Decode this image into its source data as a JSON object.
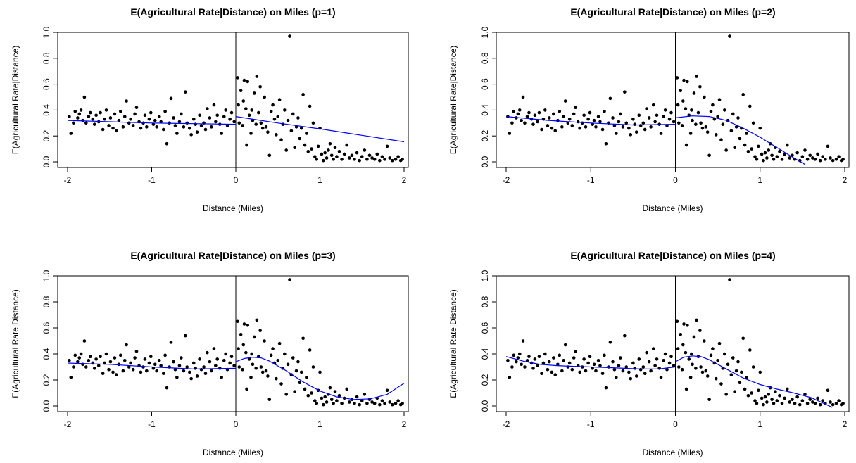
{
  "colors": {
    "points": "#000000",
    "fit_line": "#0000ff",
    "axis": "#000000",
    "cutoff": "#000000"
  },
  "chart_data": [
    {
      "type": "scatter",
      "title": "E(Agricultural Rate|Distance) on Miles (p=1)",
      "xlabel": "Distance (Miles)",
      "ylabel": "E(Agricultural Rate|Distance)",
      "xticks": [
        "-2",
        "-1",
        "0",
        "1",
        "2"
      ],
      "yticks": [
        "0.0",
        "0.2",
        "0.4",
        "0.6",
        "0.8",
        "1.0"
      ],
      "xlim": [
        -2,
        2
      ],
      "ylim": [
        0,
        1
      ],
      "cutoff_x": 0,
      "polynomial_order": 1,
      "fit_left": {
        "x": [
          -2,
          -1.5,
          -1,
          -0.5,
          0
        ],
        "y": [
          0.32,
          0.31,
          0.3,
          0.295,
          0.29
        ]
      },
      "fit_right": {
        "x": [
          0,
          0.5,
          1,
          1.5,
          2
        ],
        "y": [
          0.35,
          0.3,
          0.255,
          0.205,
          0.155
        ]
      }
    },
    {
      "type": "scatter",
      "title": "E(Agricultural Rate|Distance) on Miles (p=2)",
      "xlabel": "Distance (Miles)",
      "ylabel": "E(Agricultural Rate|Distance)",
      "xticks": [
        "-2",
        "-1",
        "0",
        "1",
        "2"
      ],
      "yticks": [
        "0.0",
        "0.2",
        "0.4",
        "0.6",
        "0.8",
        "1.0"
      ],
      "xlim": [
        -2,
        2
      ],
      "ylim": [
        0,
        1
      ],
      "cutoff_x": 0,
      "polynomial_order": 2,
      "fit_left": {
        "x": [
          -2,
          -1.5,
          -1,
          -0.5,
          0
        ],
        "y": [
          0.35,
          0.32,
          0.3,
          0.285,
          0.29
        ]
      },
      "fit_right": {
        "x": [
          0,
          0.2,
          0.4,
          0.6,
          0.8,
          1.0,
          1.2,
          1.4,
          1.53
        ],
        "y": [
          0.34,
          0.355,
          0.35,
          0.32,
          0.26,
          0.19,
          0.11,
          0.03,
          -0.02
        ]
      }
    },
    {
      "type": "scatter",
      "title": "E(Agricultural Rate|Distance) on Miles (p=3)",
      "xlabel": "Distance (Miles)",
      "ylabel": "E(Agricultural Rate|Distance)",
      "xticks": [
        "-2",
        "-1",
        "0",
        "1",
        "2"
      ],
      "yticks": [
        "0.0",
        "0.2",
        "0.4",
        "0.6",
        "0.8",
        "1.0"
      ],
      "xlim": [
        -2,
        2
      ],
      "ylim": [
        0,
        1
      ],
      "cutoff_x": 0,
      "polynomial_order": 3,
      "fit_left": {
        "x": [
          -2,
          -1.5,
          -1,
          -0.5,
          0
        ],
        "y": [
          0.33,
          0.32,
          0.3,
          0.285,
          0.29
        ]
      },
      "fit_right": {
        "x": [
          0,
          0.1,
          0.2,
          0.3,
          0.4,
          0.6,
          0.8,
          1.0,
          1.2,
          1.4,
          1.6,
          1.8,
          2.0
        ],
        "y": [
          0.34,
          0.365,
          0.375,
          0.37,
          0.345,
          0.27,
          0.185,
          0.115,
          0.07,
          0.05,
          0.055,
          0.09,
          0.175
        ]
      }
    },
    {
      "type": "scatter",
      "title": "E(Agricultural Rate|Distance) on Miles (p=4)",
      "xlabel": "Distance (Miles)",
      "ylabel": "E(Agricultural Rate|Distance)",
      "xticks": [
        "-2",
        "-1",
        "0",
        "1",
        "2"
      ],
      "yticks": [
        "0.0",
        "0.2",
        "0.4",
        "0.6",
        "0.8",
        "1.0"
      ],
      "xlim": [
        -2,
        2
      ],
      "ylim": [
        0,
        1
      ],
      "cutoff_x": 0,
      "polynomial_order": 4,
      "fit_left": {
        "x": [
          -2,
          -1.8,
          -1.6,
          -1.4,
          -1.2,
          -1.0,
          -0.8,
          -0.6,
          -0.4,
          -0.2,
          0
        ],
        "y": [
          0.38,
          0.345,
          0.32,
          0.31,
          0.305,
          0.3,
          0.295,
          0.29,
          0.285,
          0.285,
          0.3
        ]
      },
      "fit_right": {
        "x": [
          0,
          0.1,
          0.2,
          0.3,
          0.4,
          0.6,
          0.8,
          1.0,
          1.2,
          1.4,
          1.6,
          1.8,
          1.85
        ],
        "y": [
          0.34,
          0.375,
          0.385,
          0.38,
          0.355,
          0.285,
          0.215,
          0.165,
          0.13,
          0.1,
          0.065,
          0.005,
          -0.01
        ]
      }
    }
  ],
  "scatter_points": {
    "x": [
      -1.98,
      -1.96,
      -1.93,
      -1.91,
      -1.88,
      -1.86,
      -1.84,
      -1.82,
      -1.8,
      -1.78,
      -1.75,
      -1.73,
      -1.7,
      -1.68,
      -1.66,
      -1.63,
      -1.61,
      -1.58,
      -1.56,
      -1.54,
      -1.51,
      -1.49,
      -1.46,
      -1.44,
      -1.42,
      -1.39,
      -1.37,
      -1.34,
      -1.32,
      -1.3,
      -1.27,
      -1.25,
      -1.22,
      -1.2,
      -1.18,
      -1.15,
      -1.13,
      -1.1,
      -1.08,
      -1.06,
      -1.03,
      -1.01,
      -0.98,
      -0.96,
      -0.94,
      -0.91,
      -0.89,
      -0.86,
      -0.84,
      -0.82,
      -0.79,
      -0.77,
      -0.74,
      -0.72,
      -0.7,
      -0.67,
      -0.65,
      -0.62,
      -0.6,
      -0.58,
      -0.55,
      -0.53,
      -0.5,
      -0.48,
      -0.46,
      -0.43,
      -0.41,
      -0.38,
      -0.36,
      -0.34,
      -0.31,
      -0.29,
      -0.26,
      -0.24,
      -0.22,
      -0.19,
      -0.17,
      -0.14,
      -0.12,
      -0.1,
      -0.07,
      -0.05,
      -0.02,
      0.02,
      0.03,
      0.04,
      0.06,
      0.08,
      0.09,
      0.1,
      0.12,
      0.13,
      0.14,
      0.16,
      0.18,
      0.19,
      0.2,
      0.22,
      0.24,
      0.25,
      0.27,
      0.29,
      0.3,
      0.32,
      0.34,
      0.36,
      0.38,
      0.4,
      0.42,
      0.44,
      0.46,
      0.48,
      0.5,
      0.52,
      0.54,
      0.56,
      0.58,
      0.6,
      0.62,
      0.64,
      0.66,
      0.68,
      0.7,
      0.72,
      0.74,
      0.76,
      0.78,
      0.8,
      0.82,
      0.84,
      0.86,
      0.88,
      0.9,
      0.92,
      0.94,
      0.96,
      0.98,
      1.0,
      1.02,
      1.04,
      1.06,
      1.08,
      1.1,
      1.12,
      1.14,
      1.16,
      1.18,
      1.2,
      1.23,
      1.26,
      1.29,
      1.32,
      1.35,
      1.38,
      1.41,
      1.44,
      1.47,
      1.5,
      1.53,
      1.56,
      1.59,
      1.62,
      1.65,
      1.68,
      1.71,
      1.74,
      1.77,
      1.8,
      1.83,
      1.86,
      1.9,
      1.93,
      1.96,
      1.98
    ],
    "y": [
      0.35,
      0.22,
      0.3,
      0.39,
      0.34,
      0.37,
      0.4,
      0.32,
      0.5,
      0.3,
      0.35,
      0.38,
      0.33,
      0.29,
      0.36,
      0.31,
      0.38,
      0.25,
      0.33,
      0.4,
      0.28,
      0.34,
      0.26,
      0.37,
      0.24,
      0.32,
      0.39,
      0.27,
      0.35,
      0.47,
      0.3,
      0.33,
      0.28,
      0.37,
      0.42,
      0.31,
      0.26,
      0.3,
      0.36,
      0.27,
      0.33,
      0.38,
      0.29,
      0.32,
      0.27,
      0.35,
      0.31,
      0.25,
      0.39,
      0.14,
      0.3,
      0.49,
      0.34,
      0.28,
      0.22,
      0.31,
      0.37,
      0.27,
      0.54,
      0.3,
      0.26,
      0.21,
      0.33,
      0.29,
      0.23,
      0.36,
      0.28,
      0.3,
      0.25,
      0.41,
      0.34,
      0.27,
      0.44,
      0.31,
      0.36,
      0.29,
      0.22,
      0.35,
      0.4,
      0.28,
      0.33,
      0.38,
      0.31,
      0.65,
      0.44,
      0.3,
      0.55,
      0.28,
      0.47,
      0.63,
      0.41,
      0.13,
      0.62,
      0.36,
      0.22,
      0.4,
      0.32,
      0.53,
      0.29,
      0.66,
      0.38,
      0.58,
      0.3,
      0.26,
      0.5,
      0.27,
      0.23,
      0.05,
      0.39,
      0.44,
      0.33,
      0.21,
      0.35,
      0.48,
      0.17,
      0.29,
      0.4,
      0.09,
      0.32,
      0.97,
      0.24,
      0.37,
      0.11,
      0.27,
      0.34,
      0.18,
      0.26,
      0.52,
      0.13,
      0.22,
      0.08,
      0.43,
      0.1,
      0.3,
      0.04,
      0.02,
      0.12,
      0.26,
      0.06,
      0.01,
      0.07,
      0.03,
      0.09,
      0.14,
      0.05,
      0.02,
      0.11,
      0.04,
      0.08,
      0.02,
      0.06,
      0.13,
      0.03,
      0.05,
      0.02,
      0.07,
      0.01,
      0.04,
      0.09,
      0.02,
      0.05,
      0.03,
      0.02,
      0.06,
      0.01,
      0.04,
      0.02,
      0.12,
      0.03,
      0.01,
      0.02,
      0.04,
      0.01,
      0.02
    ]
  }
}
